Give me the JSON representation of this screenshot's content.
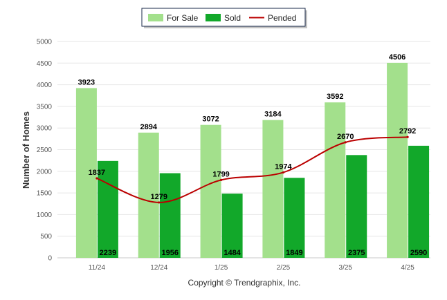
{
  "chart_data": {
    "type": "bar",
    "categories": [
      "11/24",
      "12/24",
      "1/25",
      "2/25",
      "3/25",
      "4/25"
    ],
    "series": [
      {
        "name": "For Sale",
        "type": "bar",
        "color": "#a3e08c",
        "values": [
          3923,
          2894,
          3072,
          3184,
          3592,
          4506
        ]
      },
      {
        "name": "Sold",
        "type": "bar",
        "color": "#12a82a",
        "values": [
          2239,
          1956,
          1484,
          1849,
          2375,
          2590
        ]
      },
      {
        "name": "Pended",
        "type": "line",
        "color": "#bb0000",
        "values": [
          1837,
          1279,
          1799,
          1974,
          2670,
          2792
        ]
      }
    ],
    "ylabel": "Number of Homes",
    "xlabel": "",
    "ylim": [
      0,
      5000
    ],
    "yticks": [
      0,
      500,
      1000,
      1500,
      2000,
      2500,
      3000,
      3500,
      4000,
      4500,
      5000
    ],
    "grid": true,
    "legend_position": "top-center"
  },
  "credit": "Copyright © Trendgraphix, Inc."
}
